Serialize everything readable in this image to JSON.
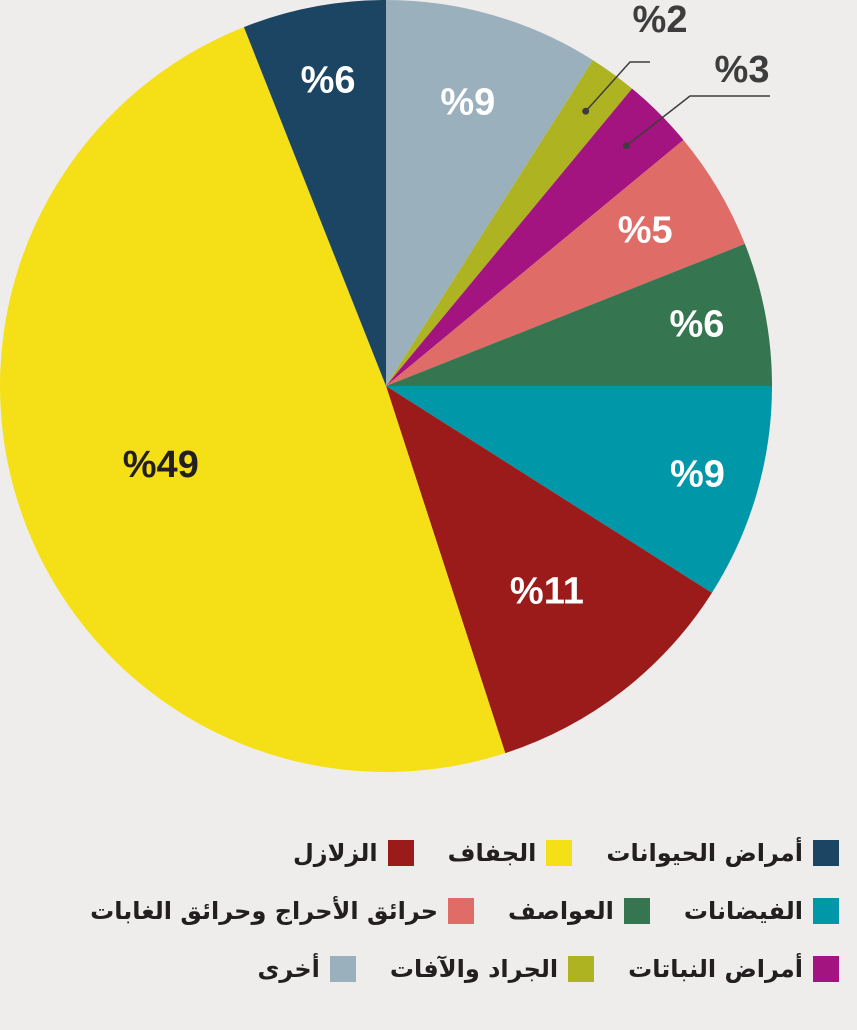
{
  "chart_data": {
    "type": "pie",
    "slices": [
      {
        "label": "أخرى",
        "value": 9,
        "text": "%9",
        "color": "#9bb0bd",
        "text_color": "#ffffff"
      },
      {
        "label": "الجراد والآفات",
        "value": 2,
        "text": "%2",
        "color": "#aeb421",
        "text_color": "#3d3d3d"
      },
      {
        "label": "أمراض النباتات",
        "value": 3,
        "text": "%3",
        "color": "#a31480",
        "text_color": "#3d3d3d"
      },
      {
        "label": "حرائق الأحراج وحرائق الغابات",
        "value": 5,
        "text": "%5",
        "color": "#e06c67",
        "text_color": "#ffffff"
      },
      {
        "label": "العواصف",
        "value": 6,
        "text": "%6",
        "color": "#357650",
        "text_color": "#ffffff"
      },
      {
        "label": "الفيضانات",
        "value": 9,
        "text": "%9",
        "color": "#0097a9",
        "text_color": "#ffffff"
      },
      {
        "label": "الزلازل",
        "value": 11,
        "text": "%11",
        "color": "#9b1a1a",
        "text_color": "#ffffff"
      },
      {
        "label": "الجفاف",
        "value": 49,
        "text": "%49",
        "color": "#f5e017",
        "text_color": "#231f20"
      },
      {
        "label": "أمراض الحيوانات",
        "value": 6,
        "text": "%6",
        "color": "#1b4562",
        "text_color": "#ffffff"
      }
    ]
  },
  "legend": {
    "rows": [
      [
        {
          "label": "أمراض الحيوانات",
          "color": "#1b4562"
        },
        {
          "label": "الجفاف",
          "color": "#f5e017"
        },
        {
          "label": "الزلازل",
          "color": "#9b1a1a"
        }
      ],
      [
        {
          "label": "الفيضانات",
          "color": "#0097a9"
        },
        {
          "label": "العواصف",
          "color": "#357650"
        },
        {
          "label": "حرائق الأحراج وحرائق الغابات",
          "color": "#e06c67"
        }
      ],
      [
        {
          "label": "أمراض النباتات",
          "color": "#a31480"
        },
        {
          "label": "الجراد والآفات",
          "color": "#aeb421"
        },
        {
          "label": "أخرى",
          "color": "#9bb0bd"
        }
      ]
    ]
  }
}
